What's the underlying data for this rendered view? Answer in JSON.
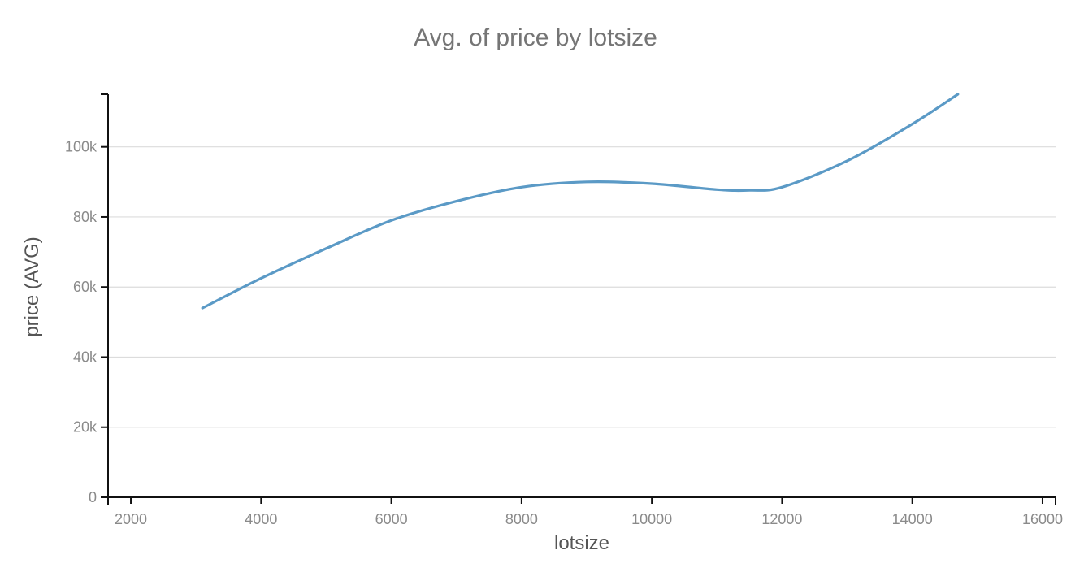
{
  "chart_data": {
    "type": "line",
    "title": "Avg. of price by lotsize",
    "xlabel": "lotsize",
    "ylabel": "price (AVG)",
    "xlim": [
      1650,
      16200
    ],
    "ylim": [
      0,
      115000
    ],
    "x_ticks": [
      2000,
      4000,
      6000,
      8000,
      10000,
      12000,
      14000,
      16000
    ],
    "x_tick_labels": [
      "2000",
      "4000",
      "6000",
      "8000",
      "10000",
      "12000",
      "14000",
      "16000"
    ],
    "y_ticks": [
      0,
      20000,
      40000,
      60000,
      80000,
      100000
    ],
    "y_tick_labels": [
      "0",
      "20k",
      "40k",
      "60k",
      "80k",
      "100k"
    ],
    "grid": "horizontal",
    "legend": "none",
    "series": [
      {
        "color": "#5b9ac6",
        "interpolation": "smooth",
        "x": [
          3100,
          4000,
          5000,
          6000,
          7000,
          8000,
          9000,
          10000,
          11000,
          11500,
          12000,
          13000,
          14000,
          14700
        ],
        "y": [
          54000,
          62500,
          71000,
          79000,
          84500,
          88500,
          90000,
          89500,
          87800,
          87600,
          88500,
          96000,
          106500,
          115000
        ]
      }
    ]
  }
}
